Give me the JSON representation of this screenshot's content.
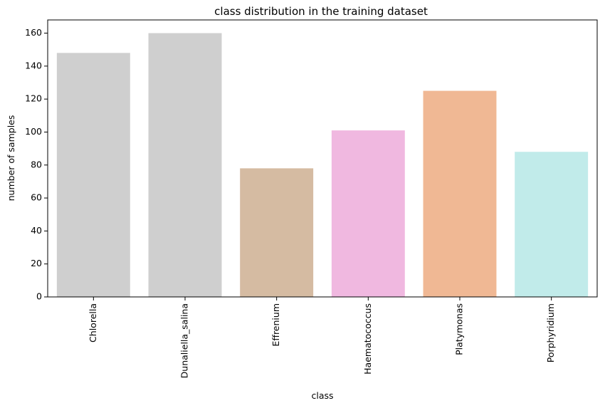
{
  "chart_data": {
    "type": "bar",
    "title": "class distribution in the training dataset",
    "xlabel": "class",
    "ylabel": "number of samples",
    "categories": [
      "Chlorella",
      "Dunaliella_salina",
      "Effrenium",
      "Haematococcus",
      "Platymonas",
      "Porphyridium"
    ],
    "values": [
      148,
      160,
      78,
      101,
      125,
      88
    ],
    "colors": [
      "#cfcfcf",
      "#cfcfcf",
      "#d5bba2",
      "#f0b8e0",
      "#f0b894",
      "#c1ebea"
    ],
    "ylim": [
      0,
      168
    ],
    "yticks": [
      0,
      20,
      40,
      60,
      80,
      100,
      120,
      140,
      160
    ],
    "grid": false,
    "legend": "none"
  }
}
